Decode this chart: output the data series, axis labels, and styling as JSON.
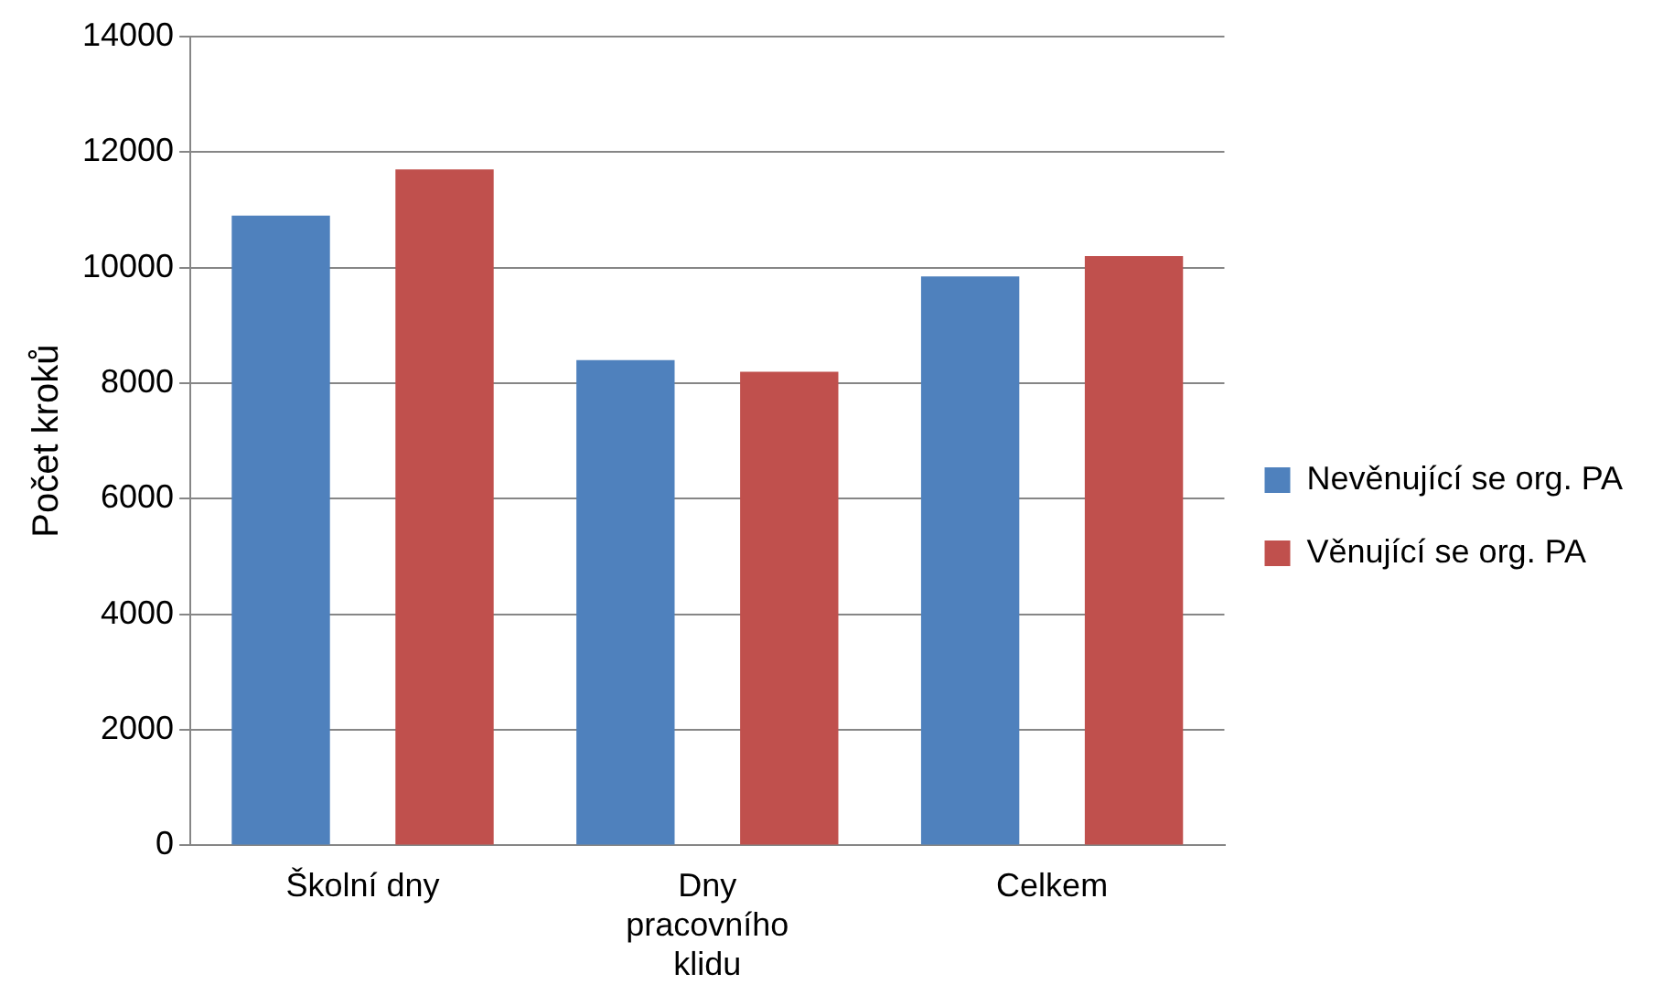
{
  "chart_data": {
    "type": "bar",
    "ylabel": "Počet kroků",
    "categories": [
      "Školní dny",
      "Dny pracovního klidu",
      "Celkem"
    ],
    "series": [
      {
        "name": "Nevěnující se org. PA",
        "color": "#4f81bd",
        "values": [
          10900,
          8400,
          9850
        ]
      },
      {
        "name": "Věnující se org. PA",
        "color": "#c0504d",
        "values": [
          11700,
          8200,
          10200
        ]
      }
    ],
    "ylim": [
      0,
      14000
    ],
    "yticks": [
      0,
      2000,
      4000,
      6000,
      8000,
      10000,
      12000,
      14000
    ],
    "grid": "y",
    "legend": "right"
  }
}
